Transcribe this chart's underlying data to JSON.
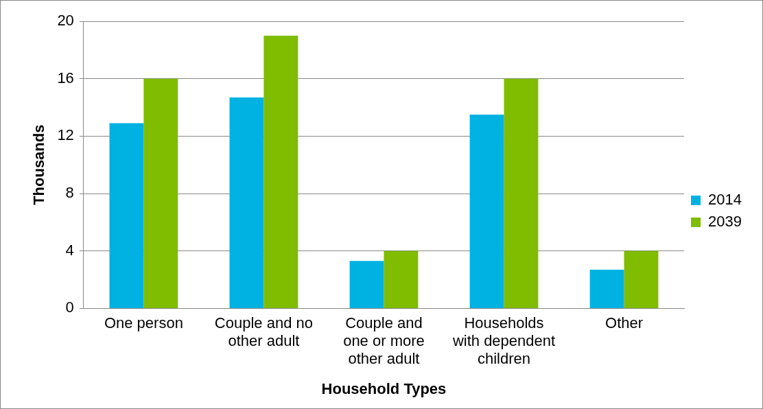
{
  "chart_data": {
    "type": "bar",
    "xlabel": "Household Types",
    "ylabel": "Thousands",
    "categories": [
      "One person",
      "Couple and no other adult",
      "Couple and one or more other adult",
      "Households with dependent children",
      "Other"
    ],
    "series": [
      {
        "name": "2014",
        "color": "#00b2e2",
        "values": [
          12.9,
          14.7,
          3.3,
          13.5,
          2.7
        ]
      },
      {
        "name": "2039",
        "color": "#80bc00",
        "values": [
          16,
          19,
          4,
          16,
          4
        ]
      }
    ],
    "ylim": [
      0,
      20
    ],
    "yticks": [
      0,
      4,
      8,
      12,
      16,
      20
    ],
    "grid": "y",
    "legend": "right"
  }
}
